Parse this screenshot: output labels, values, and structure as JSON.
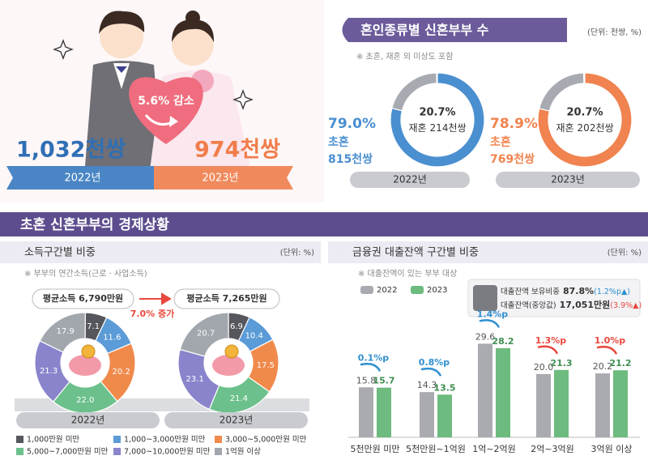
{
  "summary": {
    "values": [
      {
        "year": "2022년",
        "label": "1,032천쌍"
      },
      {
        "year": "2023년",
        "label": "974천쌍"
      }
    ],
    "change": "5.6% 감소"
  },
  "section_title": "초혼 신혼부부의 경제상황",
  "chart_data": [
    {
      "type": "donut",
      "title": "혼인종류별 신혼부부 수",
      "unit": "(단위: 천쌍, %)",
      "note": "※ 초혼, 재혼 외 미상도 포함",
      "categories": [
        "초혼",
        "재혼"
      ],
      "groups": [
        {
          "label": "2022년",
          "colors": [
            "#4a8fd0",
            "#a7abb1"
          ],
          "values": [
            79.0,
            20.7
          ],
          "value_labels": [
            "79.0%",
            "20.7%"
          ],
          "count_labels": [
            "815천쌍",
            "214천쌍"
          ]
        },
        {
          "label": "2023년",
          "colors": [
            "#f0834f",
            "#a7abb1"
          ],
          "values": [
            78.9,
            20.7
          ],
          "value_labels": [
            "78.9%",
            "20.7%"
          ],
          "count_labels": [
            "769천쌍",
            "202천쌍"
          ]
        }
      ]
    },
    {
      "type": "donut",
      "title": "소득구간별 비중",
      "unit": "(단위: %)",
      "note": "※ 부부의 연간소득(근로 · 사업소득)",
      "categories": [
        "1,000만원 미만",
        "1,000~3,000만원 미만",
        "3,000~5,000만원 미만",
        "5,000~7,000만원 미만",
        "7,000~10,000만원 미만",
        "1억원 이상"
      ],
      "colors": [
        "#55575c",
        "#5b9bd8",
        "#f08a4b",
        "#6cc08b",
        "#8a84cc",
        "#a2a6ad"
      ],
      "change": "7.0% 증가",
      "groups": [
        {
          "label": "2022년",
          "average": "평균소득 6,790만원",
          "values": [
            7.1,
            11.6,
            20.2,
            22.0,
            21.3,
            17.9
          ],
          "value_labels": [
            "7.1",
            "11.6",
            "20.2",
            "22.0",
            "21.3",
            "17.9"
          ]
        },
        {
          "label": "2023년",
          "average": "평균소득 7,265만원",
          "values": [
            6.9,
            10.4,
            17.5,
            21.4,
            23.1,
            20.7
          ],
          "value_labels": [
            "6.9",
            "10.4",
            "17.5",
            "21.4",
            "23.1",
            "20.7"
          ]
        }
      ]
    },
    {
      "type": "bar",
      "title": "금융권 대출잔액 구간별 비중",
      "unit": "(단위: %)",
      "note": "※ 대출잔액이 있는 부부 대상",
      "categories": [
        "5천만원 미만",
        "5천만원~1억원",
        "1억~2억원",
        "2억~3억원",
        "3억원 이상"
      ],
      "series": [
        {
          "name": "2022",
          "color": "#a9abb0",
          "values": [
            15.8,
            14.3,
            29.6,
            20.0,
            20.2
          ],
          "value_labels": [
            "15.8",
            "14.3",
            "29.6",
            "20.0",
            "20.2"
          ]
        },
        {
          "name": "2023",
          "color": "#6dbb7e",
          "values": [
            15.7,
            13.5,
            28.2,
            21.3,
            21.2
          ],
          "value_labels": [
            "15.7",
            "13.5",
            "28.2",
            "21.3",
            "21.2"
          ]
        }
      ],
      "annotations": [
        {
          "label": "0.1%p",
          "color": "#2f8fd0"
        },
        {
          "label": "0.8%p",
          "color": "#2f8fd0"
        },
        {
          "label": "1.4%p",
          "color": "#2f8fd0"
        },
        {
          "label": "1.3%p",
          "color": "#e8493e"
        },
        {
          "label": "1.0%p",
          "color": "#e8493e"
        }
      ],
      "info": [
        {
          "label": "대출잔액 보유비중",
          "value": "87.8%",
          "change": "(1.2%p▲)",
          "color": "#2f8fd0"
        },
        {
          "label": "대출잔액(중앙값)",
          "value": "17,051만원",
          "change": "(3.9%▲)",
          "color": "#e8493e"
        }
      ],
      "ylim": [
        0,
        32
      ]
    }
  ]
}
